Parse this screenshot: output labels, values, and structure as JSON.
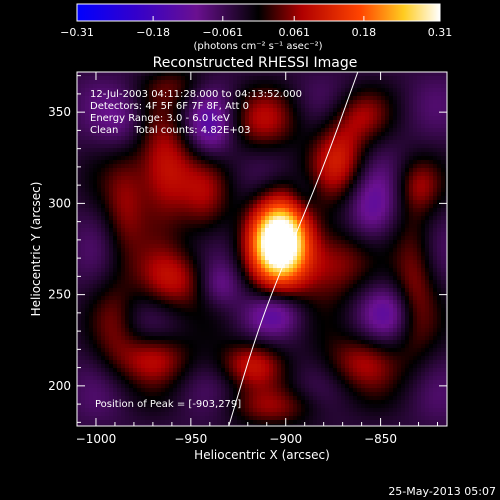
{
  "chart_data": {
    "type": "heatmap",
    "title": "Reconstructed RHESSI Image",
    "xlabel": "Heliocentric X (arcsec)",
    "ylabel": "Heliocentric Y (arcsec)",
    "xlim": [
      -1010,
      -815
    ],
    "ylim": [
      178,
      372
    ],
    "xticks": [
      -1000,
      -950,
      -900,
      -850
    ],
    "yticks": [
      200,
      250,
      300,
      350
    ],
    "xtick_labels": [
      "−1000",
      "−950",
      "−900",
      "−850"
    ],
    "ytick_labels": [
      "200",
      "250",
      "300",
      "350"
    ],
    "colorbar": {
      "range": [
        -0.31,
        0.31
      ],
      "ticks": [
        -0.31,
        -0.18,
        -0.061,
        0.061,
        0.18,
        0.31
      ],
      "tick_labels": [
        "−0.31",
        "−0.18",
        "−0.061",
        "0.061",
        "0.18",
        "0.31"
      ],
      "label": "(photons cm⁻² s⁻¹ asec⁻²)"
    },
    "annotations": [
      "12-Jul-2003 04:11:28.000 to 04:13:52.000",
      "Detectors: 4F 5F 6F 7F 8F, Att 0",
      "Energy Range: 3.0 - 6.0 keV",
      "Clean     Total counts: 4.82E+03"
    ],
    "peak_label": "Position of Peak = [-903,279]",
    "peak": {
      "x": -903,
      "y": 279,
      "value": 0.31
    },
    "limb_curve": [
      [
        -930,
        178
      ],
      [
        -915,
        230
      ],
      [
        -900,
        270
      ],
      [
        -880,
        320
      ],
      [
        -862,
        372
      ]
    ],
    "blobs": [
      {
        "x": -903,
        "y": 279,
        "sx": 11,
        "sy": 17,
        "a": 0.44
      },
      {
        "x": -964,
        "y": 318,
        "sx": 11,
        "sy": 20,
        "a": 0.16
      },
      {
        "x": -960,
        "y": 258,
        "sx": 13,
        "sy": 12,
        "a": 0.13
      },
      {
        "x": -985,
        "y": 298,
        "sx": 8,
        "sy": 22,
        "a": 0.09
      },
      {
        "x": -942,
        "y": 302,
        "sx": 9,
        "sy": 18,
        "a": 0.08
      },
      {
        "x": -872,
        "y": 325,
        "sx": 10,
        "sy": 15,
        "a": 0.14
      },
      {
        "x": -875,
        "y": 268,
        "sx": 13,
        "sy": 14,
        "a": 0.12
      },
      {
        "x": -832,
        "y": 258,
        "sx": 8,
        "sy": 30,
        "a": 0.1
      },
      {
        "x": -912,
        "y": 345,
        "sx": 14,
        "sy": 12,
        "a": 0.1
      },
      {
        "x": -860,
        "y": 348,
        "sx": 10,
        "sy": 10,
        "a": 0.08
      },
      {
        "x": -970,
        "y": 215,
        "sx": 14,
        "sy": 10,
        "a": 0.12
      },
      {
        "x": -918,
        "y": 212,
        "sx": 12,
        "sy": 9,
        "a": 0.13
      },
      {
        "x": -860,
        "y": 213,
        "sx": 14,
        "sy": 11,
        "a": 0.11
      },
      {
        "x": -905,
        "y": 188,
        "sx": 20,
        "sy": 8,
        "a": 0.08
      },
      {
        "x": -990,
        "y": 235,
        "sx": 8,
        "sy": 18,
        "a": 0.06
      },
      {
        "x": -830,
        "y": 310,
        "sx": 8,
        "sy": 10,
        "a": 0.07
      },
      {
        "x": -958,
        "y": 365,
        "sx": 12,
        "sy": 8,
        "a": 0.06
      },
      {
        "x": -905,
        "y": 240,
        "sx": 10,
        "sy": 8,
        "a": -0.08
      },
      {
        "x": -940,
        "y": 340,
        "sx": 9,
        "sy": 12,
        "a": -0.1
      },
      {
        "x": -855,
        "y": 295,
        "sx": 9,
        "sy": 14,
        "a": -0.08
      },
      {
        "x": -935,
        "y": 255,
        "sx": 8,
        "sy": 9,
        "a": -0.07
      },
      {
        "x": -985,
        "y": 345,
        "sx": 9,
        "sy": 12,
        "a": -0.06
      },
      {
        "x": -845,
        "y": 240,
        "sx": 10,
        "sy": 10,
        "a": -0.07
      },
      {
        "x": -890,
        "y": 305,
        "sx": 6,
        "sy": 8,
        "a": -0.05
      }
    ]
  },
  "footer": {
    "timestamp": "25-May-2013 05:07"
  }
}
